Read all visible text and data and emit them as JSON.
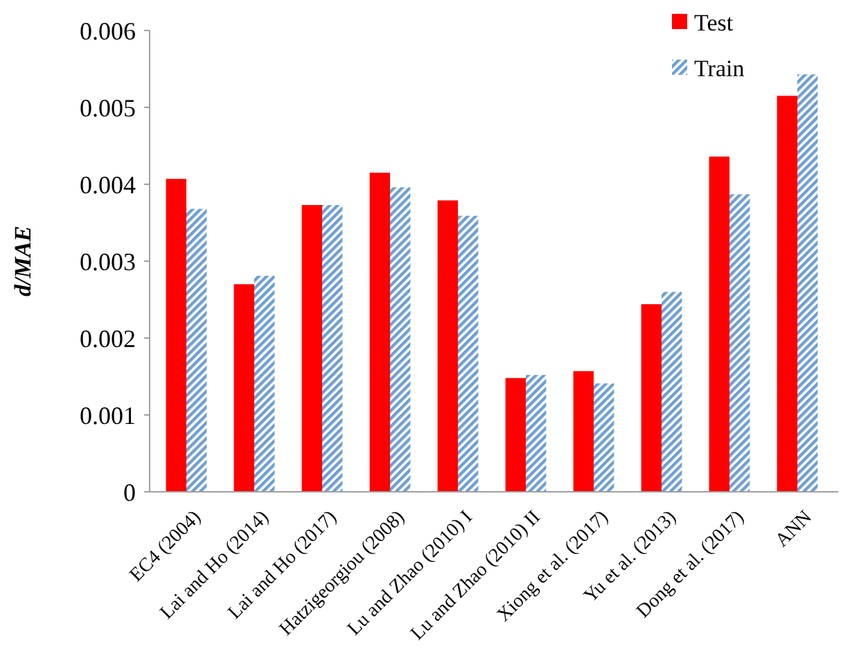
{
  "chart_data": {
    "type": "bar",
    "ylabel": "d/MAE",
    "categories": [
      "EC4 (2004)",
      "Lai and Ho (2014)",
      "Lai and Ho (2017)",
      "Hatzigeorgiou (2008)",
      "Lu and Zhao (2010) I",
      "Lu and Zhao (2010) II",
      "Xiong et al. (2017)",
      "Yu et al. (2013)",
      "Dong et al. (2017)",
      "ANN"
    ],
    "series": [
      {
        "name": "Test",
        "color": "#ff0000",
        "values": [
          0.00407,
          0.0027,
          0.00373,
          0.00415,
          0.00379,
          0.00148,
          0.00157,
          0.00244,
          0.00436,
          0.00515
        ]
      },
      {
        "name": "Train",
        "color": "#6f9fcf",
        "values": [
          0.00368,
          0.00281,
          0.00373,
          0.00396,
          0.00359,
          0.00152,
          0.00141,
          0.0026,
          0.00387,
          0.00543
        ]
      }
    ],
    "ylim": [
      0,
      0.006
    ],
    "yticks": [
      {
        "value": 0,
        "label": "0"
      },
      {
        "value": 0.001,
        "label": "0.001"
      },
      {
        "value": 0.002,
        "label": "0.002"
      },
      {
        "value": 0.003,
        "label": "0.003"
      },
      {
        "value": 0.004,
        "label": "0.004"
      },
      {
        "value": 0.005,
        "label": "0.005"
      },
      {
        "value": 0.006,
        "label": "0.006"
      }
    ],
    "grid": false,
    "legend": "top right"
  }
}
